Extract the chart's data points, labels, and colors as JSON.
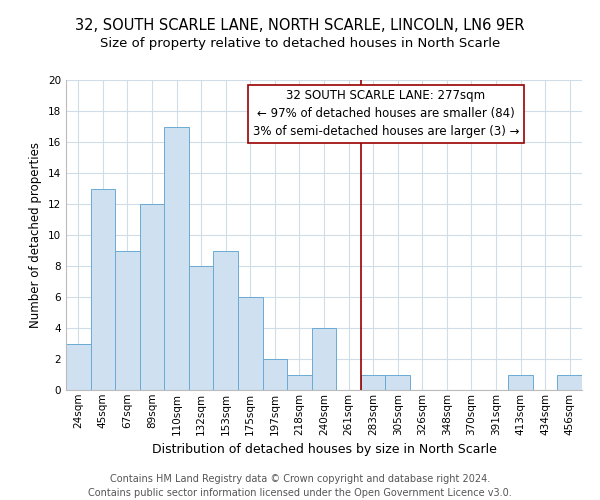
{
  "title1": "32, SOUTH SCARLE LANE, NORTH SCARLE, LINCOLN, LN6 9ER",
  "title2": "Size of property relative to detached houses in North Scarle",
  "xlabel": "Distribution of detached houses by size in North Scarle",
  "ylabel": "Number of detached properties",
  "bar_labels": [
    "24sqm",
    "45sqm",
    "67sqm",
    "89sqm",
    "110sqm",
    "132sqm",
    "153sqm",
    "175sqm",
    "197sqm",
    "218sqm",
    "240sqm",
    "261sqm",
    "283sqm",
    "305sqm",
    "326sqm",
    "348sqm",
    "370sqm",
    "391sqm",
    "413sqm",
    "434sqm",
    "456sqm"
  ],
  "bar_values": [
    3,
    13,
    9,
    12,
    17,
    8,
    9,
    6,
    2,
    1,
    4,
    0,
    1,
    1,
    0,
    0,
    0,
    0,
    1,
    0,
    1
  ],
  "bar_color": "#cfe0f0",
  "bar_edge_color": "#6aaad4",
  "grid_color": "#d0dce8",
  "vline_color": "#990000",
  "vline_x_idx": 12,
  "annotation_title": "32 SOUTH SCARLE LANE: 277sqm",
  "annotation_line1": "← 97% of detached houses are smaller (84)",
  "annotation_line2": "3% of semi-detached houses are larger (3) →",
  "footer1": "Contains HM Land Registry data © Crown copyright and database right 2024.",
  "footer2": "Contains public sector information licensed under the Open Government Licence v3.0.",
  "ylim": [
    0,
    20
  ],
  "yticks": [
    0,
    2,
    4,
    6,
    8,
    10,
    12,
    14,
    16,
    18,
    20
  ],
  "title1_fontsize": 10.5,
  "title2_fontsize": 9.5,
  "xlabel_fontsize": 9,
  "ylabel_fontsize": 8.5,
  "tick_fontsize": 7.5,
  "annotation_fontsize": 8.5,
  "footer_fontsize": 7
}
